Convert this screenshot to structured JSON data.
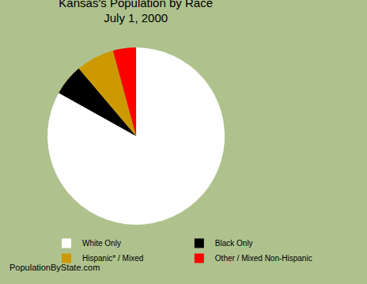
{
  "chart_data": {
    "type": "pie",
    "title": "Kansas's Population by Race",
    "subtitle": "July 1, 2000",
    "categories": [
      "White Only",
      "Black Only",
      "Hispanic* / Mixed",
      "Other / Mixed Non-Hispanic"
    ],
    "values": [
      83.1,
      5.7,
      7.0,
      4.2
    ],
    "colors": [
      "#FFFFFF",
      "#000000",
      "#CC9900",
      "#FF0000"
    ],
    "legend": "bottom",
    "data_labels": false,
    "annotations": [
      "PopulationByState.com"
    ]
  }
}
